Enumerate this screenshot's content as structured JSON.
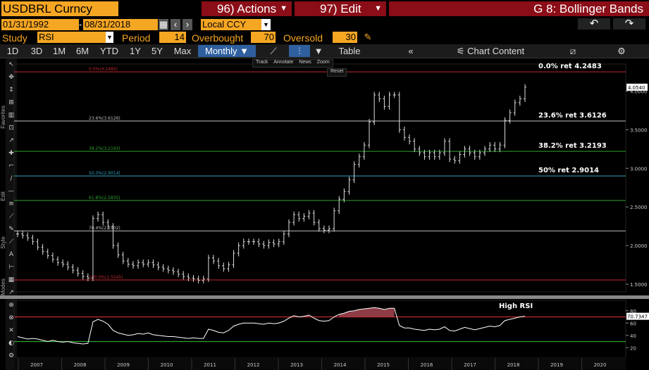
{
  "header": {
    "ticker": "USDBRL Curncy",
    "actions": "96) Actions",
    "edit": "97) Edit",
    "title": "G 8: Bollinger Bands"
  },
  "range": {
    "start": "01/31/1992",
    "end": "08/31/2018",
    "currency": "Local CCY"
  },
  "study": {
    "study_label": "Study",
    "study_value": "RSI",
    "period_label": "Period",
    "period_value": "14",
    "overbought_label": "Overbought",
    "overbought_value": "70",
    "oversold_label": "Oversold",
    "oversold_value": "30"
  },
  "toolbar": {
    "periods": [
      "1D",
      "3D",
      "1M",
      "6M",
      "YTD",
      "1Y",
      "5Y",
      "Max"
    ],
    "frequency": "Monthly",
    "table": "Table",
    "chart_content": "Chart Content"
  },
  "chart_tools": [
    "Track",
    "Annotate",
    "News",
    "Zoom",
    "Reset"
  ],
  "side_labels": [
    "Favorites",
    "Edit",
    "Style",
    "Modes"
  ],
  "annotations": {
    "high_rsi": "High RSI",
    "last_price": "4.0540",
    "last_rsi": "70.7347"
  },
  "chart_data": {
    "type": "candlestick",
    "x_ticks": [
      "2007",
      "2008",
      "2009",
      "2010",
      "2011",
      "2012",
      "2013",
      "2014",
      "2015",
      "2016",
      "2017",
      "2018",
      "2019",
      "2020"
    ],
    "y_ticks": [
      1.5,
      2.0,
      2.5,
      3.0,
      3.5,
      4.0
    ],
    "ylim": [
      1.4,
      4.35
    ],
    "rsi_ticks": [
      20,
      40,
      60,
      80
    ],
    "rsi_ylim": [
      10,
      90
    ],
    "rsi_overbought": 70,
    "rsi_oversold": 30,
    "fib_levels": [
      {
        "label": "0.0%(4.2483)",
        "value": 4.2483,
        "color": "#c0282f",
        "right": "0.0% ret 4.2483"
      },
      {
        "label": "23.6%(3.6126)",
        "value": 3.6126,
        "color": "#bfbfbf",
        "right": "23.6% ret 3.6126"
      },
      {
        "label": "38.2%(3.2193)",
        "value": 3.2193,
        "color": "#2fa02f",
        "right": "38.2% ret 3.2193"
      },
      {
        "label": "50.0%(2.9014)",
        "value": 2.9014,
        "color": "#2f9fbf",
        "right": "50% ret 2.9014"
      },
      {
        "label": "61.8%(2.5835)",
        "value": 2.5835,
        "color": "#2fa02f",
        "right": ""
      },
      {
        "label": "76.4%(2.1902)",
        "value": 2.1902,
        "color": "#bfbfbf",
        "right": ""
      },
      {
        "label": "100.0%(1.5545)",
        "value": 1.5545,
        "color": "#c0282f",
        "right": ""
      }
    ],
    "price": [
      2.15,
      2.13,
      2.1,
      2.05,
      1.98,
      1.92,
      1.87,
      1.82,
      1.78,
      1.76,
      1.72,
      1.68,
      1.64,
      1.6,
      1.58,
      2.35,
      2.4,
      2.3,
      2.25,
      2.0,
      1.88,
      1.8,
      1.76,
      1.74,
      1.78,
      1.76,
      1.78,
      1.75,
      1.72,
      1.7,
      1.68,
      1.66,
      1.63,
      1.6,
      1.58,
      1.57,
      1.55,
      1.57,
      1.84,
      1.8,
      1.74,
      1.7,
      1.75,
      1.9,
      2.0,
      2.05,
      2.05,
      2.05,
      2.02,
      2.0,
      2.04,
      2.02,
      2.05,
      2.15,
      2.3,
      2.4,
      2.35,
      2.38,
      2.42,
      2.3,
      2.22,
      2.2,
      2.22,
      2.45,
      2.6,
      2.7,
      2.85,
      3.05,
      3.15,
      3.3,
      3.6,
      3.95,
      3.9,
      3.8,
      3.95,
      3.95,
      3.5,
      3.4,
      3.35,
      3.25,
      3.2,
      3.15,
      3.2,
      3.15,
      3.2,
      3.35,
      3.12,
      3.1,
      3.18,
      3.25,
      3.2,
      3.15,
      3.2,
      3.25,
      3.3,
      3.25,
      3.3,
      3.62,
      3.72,
      3.85,
      3.9,
      4.05
    ],
    "rsi": [
      38,
      36,
      34,
      35,
      34,
      32,
      30,
      32,
      30,
      29,
      30,
      28,
      27,
      26,
      27,
      62,
      66,
      63,
      58,
      48,
      44,
      42,
      40,
      41,
      43,
      42,
      44,
      41,
      40,
      39,
      38,
      38,
      37,
      36,
      35,
      36,
      35,
      35,
      50,
      48,
      45,
      44,
      48,
      55,
      58,
      60,
      60,
      60,
      59,
      58,
      60,
      59,
      60,
      63,
      68,
      72,
      70,
      71,
      73,
      68,
      64,
      63,
      64,
      70,
      74,
      76,
      79,
      80,
      82,
      83,
      84,
      85,
      84,
      82,
      84,
      84,
      56,
      52,
      52,
      50,
      49,
      48,
      50,
      49,
      50,
      54,
      48,
      47,
      50,
      53,
      51,
      49,
      51,
      53,
      55,
      54,
      56,
      64,
      66,
      68,
      70,
      71
    ]
  }
}
